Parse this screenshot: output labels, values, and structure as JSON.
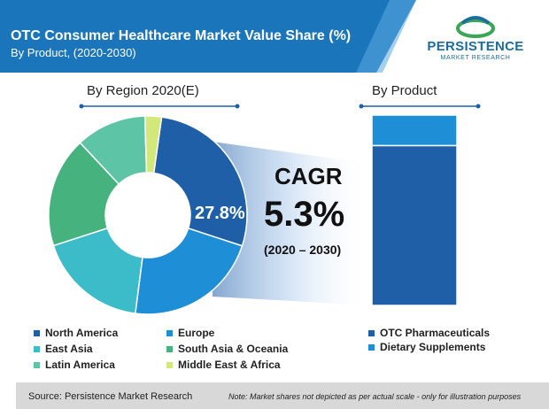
{
  "header": {
    "title": "OTC Consumer Healthcare Market Value Share (%)",
    "subtitle": "By Product, (2020-2030)",
    "banner_color": "#1b75bb"
  },
  "logo": {
    "name": "PERSISTENCE",
    "tagline": "MARKET RESEARCH"
  },
  "cagr": {
    "label": "CAGR",
    "value": "5.3%",
    "period": "(2020 – 2030)"
  },
  "footer": {
    "source": "Source: Persistence Market Research",
    "note": "Note: Market shares not depicted as per actual scale - only for illustration purposes"
  },
  "chart_data": [
    {
      "type": "pie",
      "title": "By Region 2020(E)",
      "donut": true,
      "highlighted_label": "27.8%",
      "series": [
        {
          "name": "North America",
          "value": 27.8,
          "color": "#1f5fa8"
        },
        {
          "name": "Europe",
          "value": 22.0,
          "color": "#1e8fd6"
        },
        {
          "name": "East Asia",
          "value": 18.0,
          "color": "#3cbcc8"
        },
        {
          "name": "South Asia & Oceania",
          "value": 18.0,
          "color": "#46b27e"
        },
        {
          "name": "Latin America",
          "value": 11.5,
          "color": "#5ec4a6"
        },
        {
          "name": "Middle East & Africa",
          "value": 2.7,
          "color": "#d3e87a"
        }
      ]
    },
    {
      "type": "bar",
      "title": "By Product",
      "stacked": true,
      "series": [
        {
          "name": "OTC Pharmaceuticals",
          "value": 84,
          "color": "#1f5fa8"
        },
        {
          "name": "Dietary Supplements",
          "value": 16,
          "color": "#1e8fd6"
        }
      ]
    }
  ]
}
